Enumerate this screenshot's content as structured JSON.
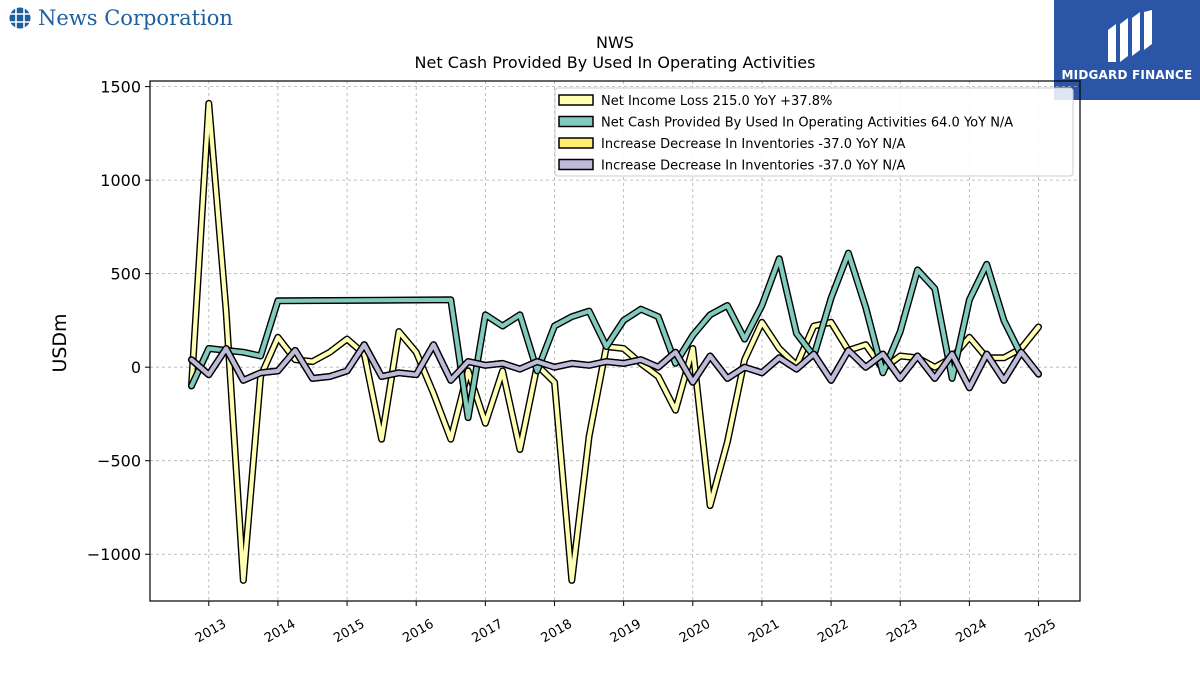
{
  "brand": {
    "left_name": "News Corporation",
    "right_name": "MIDGARD FINANCE"
  },
  "colors": {
    "net_income": "#ffffb3",
    "op_activities": "#80cbbe",
    "inventories_1": "#ffed6f",
    "inventories_2": "#bebada",
    "outline": "#000000",
    "brand_blue": "#2b56a8",
    "logo_blue": "#1f5f9e"
  },
  "chart_data": {
    "type": "line",
    "title": "NWS",
    "subtitle": "Net Cash Provided By Used In Operating Activities",
    "xlabel": "",
    "ylabel": "USDm",
    "xlim": [
      2012.15,
      2025.6
    ],
    "ylim": [
      -1250,
      1530
    ],
    "grid": true,
    "legend_position": "top-right",
    "x_ticks": [
      2013,
      2014,
      2015,
      2016,
      2017,
      2018,
      2019,
      2020,
      2021,
      2022,
      2023,
      2024,
      2025
    ],
    "x_tick_labels": [
      "2013",
      "2014",
      "2015",
      "2016",
      "2017",
      "2018",
      "2019",
      "2020",
      "2021",
      "2022",
      "2023",
      "2024",
      "2025"
    ],
    "y_ticks": [
      -1000,
      -500,
      0,
      500,
      1000,
      1500
    ],
    "y_tick_labels": [
      "−1000",
      "−500",
      "0",
      "500",
      "1000",
      "1500"
    ],
    "series": [
      {
        "name": "Net Income Loss  215.0 YoY +37.8%",
        "color": "#ffffb3",
        "points": [
          [
            2012.75,
            -100
          ],
          [
            2013.0,
            1410
          ],
          [
            2013.25,
            300
          ],
          [
            2013.5,
            -1140
          ],
          [
            2013.75,
            -50
          ],
          [
            2014.0,
            160
          ],
          [
            2014.25,
            40
          ],
          [
            2014.5,
            30
          ],
          [
            2014.75,
            80
          ],
          [
            2015.0,
            150
          ],
          [
            2015.25,
            70
          ],
          [
            2015.5,
            -385
          ],
          [
            2015.75,
            190
          ],
          [
            2016.0,
            80
          ],
          [
            2016.25,
            -140
          ],
          [
            2016.5,
            -385
          ],
          [
            2016.75,
            -20
          ],
          [
            2017.0,
            -300
          ],
          [
            2017.25,
            -20
          ],
          [
            2017.5,
            -440
          ],
          [
            2017.75,
            10
          ],
          [
            2018.0,
            -80
          ],
          [
            2018.25,
            -1140
          ],
          [
            2018.5,
            -370
          ],
          [
            2018.75,
            110
          ],
          [
            2019.0,
            100
          ],
          [
            2019.25,
            20
          ],
          [
            2019.5,
            -50
          ],
          [
            2019.75,
            -230
          ],
          [
            2020.0,
            100
          ],
          [
            2020.25,
            -740
          ],
          [
            2020.5,
            -400
          ],
          [
            2020.75,
            40
          ],
          [
            2021.0,
            240
          ],
          [
            2021.25,
            100
          ],
          [
            2021.5,
            10
          ],
          [
            2021.75,
            220
          ],
          [
            2022.0,
            240
          ],
          [
            2022.25,
            90
          ],
          [
            2022.5,
            120
          ],
          [
            2022.75,
            -10
          ],
          [
            2023.0,
            60
          ],
          [
            2023.25,
            50
          ],
          [
            2023.5,
            0
          ],
          [
            2023.75,
            50
          ],
          [
            2024.0,
            160
          ],
          [
            2024.25,
            50
          ],
          [
            2024.5,
            50
          ],
          [
            2024.75,
            100
          ],
          [
            2025.0,
            215
          ]
        ]
      },
      {
        "name": "Net Cash Provided By Used In Operating Activities  64.0 YoY N/A",
        "color": "#80cbbe",
        "points": [
          [
            2012.75,
            -100
          ],
          [
            2013.0,
            100
          ],
          [
            2013.25,
            90
          ],
          [
            2013.5,
            80
          ],
          [
            2013.75,
            60
          ],
          [
            2014.0,
            355
          ],
          [
            2016.5,
            360
          ],
          [
            2016.75,
            -270
          ],
          [
            2017.0,
            280
          ],
          [
            2017.25,
            220
          ],
          [
            2017.5,
            280
          ],
          [
            2017.75,
            -20
          ],
          [
            2018.0,
            220
          ],
          [
            2018.25,
            270
          ],
          [
            2018.5,
            300
          ],
          [
            2018.75,
            110
          ],
          [
            2019.0,
            250
          ],
          [
            2019.25,
            310
          ],
          [
            2019.5,
            270
          ],
          [
            2019.75,
            20
          ],
          [
            2020.0,
            170
          ],
          [
            2020.25,
            280
          ],
          [
            2020.5,
            330
          ],
          [
            2020.75,
            150
          ],
          [
            2021.0,
            330
          ],
          [
            2021.25,
            580
          ],
          [
            2021.5,
            180
          ],
          [
            2021.75,
            60
          ],
          [
            2022.0,
            370
          ],
          [
            2022.25,
            610
          ],
          [
            2022.5,
            320
          ],
          [
            2022.75,
            -30
          ],
          [
            2023.0,
            190
          ],
          [
            2023.25,
            520
          ],
          [
            2023.5,
            420
          ],
          [
            2023.75,
            -60
          ],
          [
            2024.0,
            360
          ],
          [
            2024.25,
            550
          ],
          [
            2024.5,
            250
          ],
          [
            2024.75,
            64
          ]
        ]
      },
      {
        "name": "Increase Decrease In Inventories  -37.0 YoY N/A",
        "color": "#ffed6f",
        "points": [
          [
            2012.75,
            40
          ],
          [
            2013.0,
            -40
          ],
          [
            2013.25,
            100
          ],
          [
            2013.5,
            -70
          ],
          [
            2013.75,
            -30
          ],
          [
            2014.0,
            -20
          ],
          [
            2014.25,
            90
          ],
          [
            2014.5,
            -60
          ],
          [
            2014.75,
            -50
          ],
          [
            2015.0,
            -20
          ],
          [
            2015.25,
            120
          ],
          [
            2015.5,
            -50
          ],
          [
            2015.75,
            -30
          ],
          [
            2016.0,
            -40
          ],
          [
            2016.25,
            120
          ],
          [
            2016.5,
            -70
          ],
          [
            2016.75,
            30
          ],
          [
            2017.0,
            10
          ],
          [
            2017.25,
            20
          ],
          [
            2017.5,
            -10
          ],
          [
            2017.75,
            30
          ],
          [
            2018.0,
            0
          ],
          [
            2018.25,
            20
          ],
          [
            2018.5,
            10
          ],
          [
            2018.75,
            30
          ],
          [
            2019.0,
            20
          ],
          [
            2019.25,
            40
          ],
          [
            2019.5,
            0
          ],
          [
            2019.75,
            80
          ],
          [
            2020.0,
            -80
          ],
          [
            2020.25,
            60
          ],
          [
            2020.5,
            -60
          ],
          [
            2020.75,
            0
          ],
          [
            2021.0,
            -30
          ],
          [
            2021.25,
            50
          ],
          [
            2021.5,
            -10
          ],
          [
            2021.75,
            70
          ],
          [
            2022.0,
            -70
          ],
          [
            2022.25,
            90
          ],
          [
            2022.5,
            0
          ],
          [
            2022.75,
            70
          ],
          [
            2023.0,
            -60
          ],
          [
            2023.25,
            60
          ],
          [
            2023.5,
            -60
          ],
          [
            2023.75,
            70
          ],
          [
            2024.0,
            -110
          ],
          [
            2024.25,
            70
          ],
          [
            2024.5,
            -70
          ],
          [
            2024.75,
            80
          ],
          [
            2025.0,
            -37
          ]
        ]
      },
      {
        "name": "Increase Decrease In Inventories  -37.0 YoY N/A",
        "color": "#bebada",
        "points": [
          [
            2012.75,
            40
          ],
          [
            2013.0,
            -40
          ],
          [
            2013.25,
            100
          ],
          [
            2013.5,
            -70
          ],
          [
            2013.75,
            -30
          ],
          [
            2014.0,
            -20
          ],
          [
            2014.25,
            90
          ],
          [
            2014.5,
            -60
          ],
          [
            2014.75,
            -50
          ],
          [
            2015.0,
            -20
          ],
          [
            2015.25,
            120
          ],
          [
            2015.5,
            -50
          ],
          [
            2015.75,
            -30
          ],
          [
            2016.0,
            -40
          ],
          [
            2016.25,
            120
          ],
          [
            2016.5,
            -70
          ],
          [
            2016.75,
            30
          ],
          [
            2017.0,
            10
          ],
          [
            2017.25,
            20
          ],
          [
            2017.5,
            -10
          ],
          [
            2017.75,
            30
          ],
          [
            2018.0,
            0
          ],
          [
            2018.25,
            20
          ],
          [
            2018.5,
            10
          ],
          [
            2018.75,
            30
          ],
          [
            2019.0,
            20
          ],
          [
            2019.25,
            40
          ],
          [
            2019.5,
            0
          ],
          [
            2019.75,
            80
          ],
          [
            2020.0,
            -80
          ],
          [
            2020.25,
            60
          ],
          [
            2020.5,
            -60
          ],
          [
            2020.75,
            0
          ],
          [
            2021.0,
            -30
          ],
          [
            2021.25,
            50
          ],
          [
            2021.5,
            -10
          ],
          [
            2021.75,
            70
          ],
          [
            2022.0,
            -70
          ],
          [
            2022.25,
            90
          ],
          [
            2022.5,
            0
          ],
          [
            2022.75,
            70
          ],
          [
            2023.0,
            -60
          ],
          [
            2023.25,
            60
          ],
          [
            2023.5,
            -60
          ],
          [
            2023.75,
            70
          ],
          [
            2024.0,
            -110
          ],
          [
            2024.25,
            70
          ],
          [
            2024.5,
            -70
          ],
          [
            2024.75,
            80
          ],
          [
            2025.0,
            -37
          ]
        ]
      }
    ]
  }
}
